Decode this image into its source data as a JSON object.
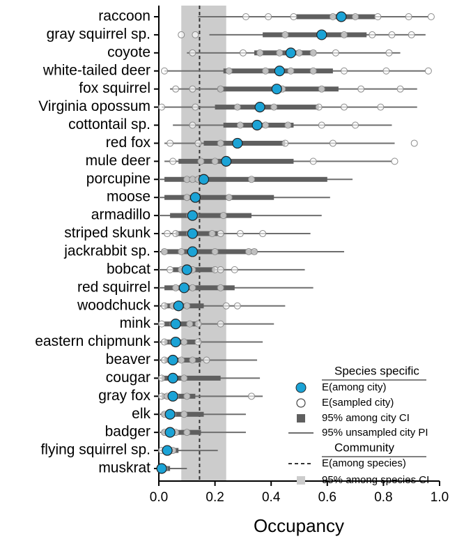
{
  "chart_data": {
    "type": "dot-interval",
    "xlabel": "Occupancy",
    "xlim": [
      0,
      1
    ],
    "xticks": [
      {
        "value": 0,
        "label": "0.0"
      },
      {
        "value": 0.2,
        "label": "0.2"
      },
      {
        "value": 0.4,
        "label": "0.4"
      },
      {
        "value": 0.6,
        "label": "0.6"
      },
      {
        "value": 0.8,
        "label": "0.8"
      },
      {
        "value": 1,
        "label": "1.0"
      }
    ],
    "categories": [
      "raccoon",
      "gray squirrel sp.",
      "coyote",
      "white-tailed deer",
      "fox squirrel",
      "Virginia opossum",
      "cottontail sp.",
      "red fox",
      "mule deer",
      "porcupine",
      "moose",
      "armadillo",
      "striped skunk",
      "jackrabbit sp.",
      "bobcat",
      "red squirrel",
      "woodchuck",
      "mink",
      "eastern chipmunk",
      "beaver",
      "cougar",
      "gray fox",
      "elk",
      "badger",
      "flying squirrel sp.",
      "muskrat"
    ],
    "mean": [
      0.65,
      0.58,
      0.47,
      0.43,
      0.42,
      0.36,
      0.35,
      0.28,
      0.24,
      0.16,
      0.13,
      0.12,
      0.12,
      0.12,
      0.1,
      0.09,
      0.07,
      0.06,
      0.06,
      0.05,
      0.05,
      0.05,
      0.04,
      0.04,
      0.03,
      0.01
    ],
    "ci_low": [
      0.49,
      0.37,
      0.34,
      0.23,
      0.21,
      0.2,
      0.23,
      0.16,
      0.07,
      0.02,
      0.02,
      0.04,
      0.06,
      0.01,
      0.05,
      0.02,
      0.02,
      0.02,
      0.02,
      0.02,
      0.01,
      0.01,
      0.01,
      0.01,
      0.01,
      0
    ],
    "ci_high": [
      0.77,
      0.74,
      0.56,
      0.62,
      0.64,
      0.57,
      0.48,
      0.45,
      0.48,
      0.6,
      0.41,
      0.33,
      0.21,
      0.35,
      0.2,
      0.27,
      0.16,
      0.14,
      0.13,
      0.15,
      0.22,
      0.13,
      0.16,
      0.15,
      0.07,
      0.04
    ],
    "pi_low": [
      0.14,
      0.18,
      0.1,
      0.02,
      0.04,
      0.01,
      0.05,
      0.02,
      0.02,
      0,
      0,
      0,
      0.01,
      0,
      0,
      0,
      0,
      0,
      0,
      0,
      0,
      0,
      0,
      0,
      0,
      0
    ],
    "pi_high": [
      0.96,
      0.95,
      0.86,
      0.95,
      0.92,
      0.92,
      0.83,
      0.84,
      0.83,
      0.69,
      0.61,
      0.58,
      0.54,
      0.66,
      0.52,
      0.55,
      0.45,
      0.41,
      0.37,
      0.35,
      0.36,
      0.37,
      0.31,
      0.31,
      0.21,
      0.1
    ],
    "sampled": [
      [
        0.31,
        0.39,
        0.48,
        0.62,
        0.7,
        0.78,
        0.89,
        0.97
      ],
      [
        0.08,
        0.13,
        0.45,
        0.66,
        0.76,
        0.83,
        0.9
      ],
      [
        0.12,
        0.3,
        0.36,
        0.43,
        0.5,
        0.55,
        0.63,
        0.82
      ],
      [
        0.02,
        0.25,
        0.38,
        0.47,
        0.55,
        0.66,
        0.81,
        0.96
      ],
      [
        0.06,
        0.12,
        0.22,
        0.44,
        0.58,
        0.72,
        0.86
      ],
      [
        0.01,
        0.13,
        0.28,
        0.41,
        0.57,
        0.66,
        0.79
      ],
      [
        0.12,
        0.29,
        0.38,
        0.46,
        0.58,
        0.7
      ],
      [
        0.04,
        0.14,
        0.22,
        0.45,
        0.62,
        0.91
      ],
      [
        0.05,
        0.15,
        0.2,
        0.55,
        0.84
      ],
      [
        0.1,
        0.12,
        0.14,
        0.33
      ],
      [
        0.1,
        0.13,
        0.25
      ],
      [
        0.11,
        0.13,
        0.23
      ],
      [
        0.03,
        0.06,
        0.11,
        0.19,
        0.22,
        0.29,
        0.37
      ],
      [
        0.02,
        0.08,
        0.12,
        0.2,
        0.32,
        0.34
      ],
      [
        0.04,
        0.08,
        0.12,
        0.2,
        0.22,
        0.27
      ],
      [
        0.06,
        0.12,
        0.22
      ],
      [
        0.02,
        0.05,
        0.1,
        0.24,
        0.28
      ],
      [
        0.01,
        0.05,
        0.11,
        0.14,
        0.22
      ],
      [
        0.02,
        0.05,
        0.09,
        0.14
      ],
      [
        0.02,
        0.04,
        0.08,
        0.12,
        0.17
      ],
      [
        0.01,
        0.05,
        0.09
      ],
      [
        0.01,
        0.03,
        0.06,
        0.1,
        0.33
      ],
      [
        0.02,
        0.05,
        0.09
      ],
      [
        0.02,
        0.06,
        0.1
      ],
      [
        0.01,
        0.03,
        0.05
      ],
      [
        0.01,
        0.02
      ]
    ],
    "community_mean": 0.145,
    "community_ci": [
      0.08,
      0.24
    ],
    "colors": {
      "mean": "#1ba3d6",
      "ci": "#5f5f5f",
      "pi": "#6e6e6e",
      "sampled": "#8a8a8a",
      "band": "#cccccc"
    },
    "legend": {
      "species_title": "Species specific",
      "species_items": [
        "E(among city)",
        "E(sampled city)",
        "95% among city CI",
        "95% unsampled city PI"
      ],
      "community_title": "Community",
      "community_items": [
        "E(among species)",
        "95% among species CI"
      ]
    }
  }
}
